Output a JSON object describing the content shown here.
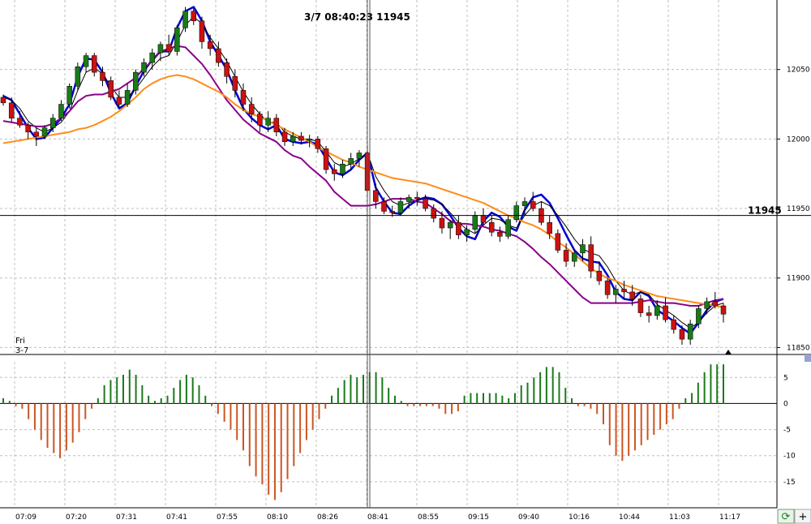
{
  "chart_data": [
    {
      "type": "candlestick",
      "title": "",
      "cursor_label": "3/7 08:40:23  11945",
      "crosshair_price": 11945,
      "crosshair_price_label": "11945",
      "day_label": [
        "Fri",
        "3-7"
      ],
      "ylim": [
        11845,
        12100
      ],
      "y_ticks": [
        11850,
        11900,
        11950,
        12000,
        12050
      ],
      "y_tick_labels": [
        "11850",
        "11900",
        "11950",
        "12000",
        "12050"
      ],
      "x_tick_labels": [
        "07:09",
        "07:20",
        "07:31",
        "07:41",
        "07:55",
        "08:10",
        "08:26",
        "08:41",
        "08:55",
        "09:15",
        "09:40",
        "10:16",
        "10:44",
        "11:03",
        "11:17"
      ],
      "grid": true,
      "series": [
        {
          "name": "",
          "color": "#0000cc",
          "values": [
            12031,
            12028,
            12018,
            12008,
            12000,
            12001,
            12008,
            12015,
            12025,
            12045,
            12058,
            12057,
            12048,
            12033,
            12022,
            12026,
            12038,
            12049,
            12057,
            12063,
            12063,
            12080,
            12092,
            12095,
            12085,
            12070,
            12060,
            12050,
            12035,
            12022,
            12015,
            12010,
            12007,
            12010,
            12000,
            11998,
            11997,
            11998,
            11996,
            11986,
            11976,
            11974,
            11978,
            11985,
            11990,
            11965,
            11955,
            11947,
            11946,
            11952,
            11956,
            11958,
            11957,
            11953,
            11945,
            11936,
            11930,
            11928,
            11941,
            11947,
            11944,
            11937,
            11934,
            11949,
            11958,
            11960,
            11954,
            11943,
            11931,
            11920,
            11914,
            11912,
            11911,
            11902,
            11890,
            11885,
            11884,
            11890,
            11887,
            11877,
            11873,
            11869,
            11864,
            11860,
            11868,
            11877,
            11883,
            11885
          ]
        },
        {
          "name": "",
          "color": "#000000",
          "values": [
            12030,
            12028,
            12022,
            12013,
            12008,
            12005,
            12008,
            12012,
            12020,
            12035,
            12048,
            12051,
            12047,
            12038,
            12030,
            12030,
            12036,
            12044,
            12052,
            12058,
            12060,
            12070,
            12082,
            12088,
            12083,
            12073,
            12065,
            12056,
            12045,
            12034,
            12025,
            12018,
            12012,
            12012,
            12005,
            12002,
            12000,
            12000,
            11998,
            11991,
            11983,
            11980,
            11982,
            11986,
            11990,
            11973,
            11963,
            11955,
            11952,
            11954,
            11956,
            11957,
            11956,
            11953,
            11947,
            11940,
            11935,
            11932,
            11938,
            11943,
            11942,
            11938,
            11936,
            11945,
            11952,
            11955,
            11952,
            11945,
            11937,
            11928,
            11921,
            11918,
            11916,
            11908,
            11898,
            11891,
            11888,
            11890,
            11888,
            11881,
            11877,
            11873,
            11868,
            11864,
            11868,
            11875,
            11880,
            11882
          ]
        },
        {
          "name": "",
          "color": "#880088",
          "values": [
            12013,
            12012,
            12011,
            12010,
            12009,
            12009,
            12011,
            12015,
            12020,
            12027,
            12031,
            12032,
            12032,
            12034,
            12036,
            12040,
            12044,
            12051,
            12056,
            12063,
            12065,
            12067,
            12066,
            12060,
            12054,
            12046,
            12037,
            12028,
            12021,
            12014,
            12009,
            12004,
            12001,
            11998,
            11992,
            11988,
            11986,
            11980,
            11975,
            11970,
            11962,
            11957,
            11952,
            11952,
            11952,
            11953,
            11955,
            11957,
            11957,
            11957,
            11955,
            11954,
            11950,
            11946,
            11941,
            11939,
            11939,
            11938,
            11937,
            11935,
            11934,
            11932,
            11930,
            11926,
            11921,
            11915,
            11910,
            11904,
            11898,
            11892,
            11886,
            11882,
            11882,
            11882,
            11882,
            11882,
            11882,
            11883,
            11884,
            11883,
            11882,
            11882,
            11881,
            11880,
            11880,
            11882,
            11884,
            11885
          ]
        },
        {
          "name": "",
          "color": "#ff8c1a",
          "values": [
            11997,
            11998,
            11999,
            12000,
            12001,
            12002,
            12003,
            12004,
            12005,
            12007,
            12008,
            12010,
            12013,
            12016,
            12020,
            12025,
            12030,
            12036,
            12040,
            12043,
            12045,
            12046,
            12045,
            12043,
            12040,
            12037,
            12034,
            12030,
            12025,
            12021,
            12018,
            12016,
            12013,
            12010,
            12007,
            12004,
            12001,
            11998,
            11994,
            11991,
            11988,
            11985,
            11983,
            11980,
            11978,
            11976,
            11974,
            11972,
            11971,
            11970,
            11969,
            11968,
            11966,
            11964,
            11962,
            11960,
            11958,
            11956,
            11954,
            11951,
            11948,
            11945,
            11943,
            11940,
            11938,
            11935,
            11931,
            11926,
            11922,
            11917,
            11912,
            11907,
            11903,
            11900,
            11898,
            11895,
            11893,
            11891,
            11889,
            11887,
            11886,
            11885,
            11884,
            11883,
            11882,
            11881,
            11880,
            11879
          ]
        }
      ],
      "candles": [
        [
          12030,
          12032,
          12024,
          12026
        ],
        [
          12026,
          12030,
          12012,
          12015
        ],
        [
          12015,
          12020,
          12008,
          12010
        ],
        [
          12010,
          12012,
          12000,
          12005
        ],
        [
          12005,
          12008,
          11995,
          12002
        ],
        [
          12002,
          12010,
          12000,
          12008
        ],
        [
          12008,
          12018,
          12005,
          12015
        ],
        [
          12015,
          12028,
          12013,
          12025
        ],
        [
          12025,
          12040,
          12022,
          12038
        ],
        [
          12038,
          12055,
          12035,
          12052
        ],
        [
          12052,
          12062,
          12048,
          12060
        ],
        [
          12060,
          12062,
          12045,
          12048
        ],
        [
          12048,
          12052,
          12038,
          12042
        ],
        [
          12042,
          12045,
          12028,
          12030
        ],
        [
          12030,
          12035,
          12022,
          12025
        ],
        [
          12025,
          12040,
          12023,
          12035
        ],
        [
          12035,
          12050,
          12032,
          12048
        ],
        [
          12048,
          12058,
          12045,
          12055
        ],
        [
          12055,
          12065,
          12050,
          12062
        ],
        [
          12062,
          12070,
          12056,
          12068
        ],
        [
          12068,
          12075,
          12060,
          12063
        ],
        [
          12063,
          12082,
          12060,
          12080
        ],
        [
          12080,
          12095,
          12077,
          12092
        ],
        [
          12092,
          12095,
          12082,
          12085
        ],
        [
          12085,
          12088,
          12065,
          12070
        ],
        [
          12070,
          12075,
          12060,
          12065
        ],
        [
          12065,
          12070,
          12052,
          12055
        ],
        [
          12055,
          12058,
          12040,
          12045
        ],
        [
          12045,
          12050,
          12030,
          12035
        ],
        [
          12035,
          12040,
          12020,
          12025
        ],
        [
          12025,
          12030,
          12012,
          12018
        ],
        [
          12018,
          12020,
          12005,
          12010
        ],
        [
          12010,
          12020,
          12005,
          12015
        ],
        [
          12015,
          12018,
          12002,
          12005
        ],
        [
          12005,
          12008,
          11995,
          11998
        ],
        [
          11998,
          12005,
          11995,
          12002
        ],
        [
          12002,
          12005,
          11996,
          11999
        ],
        [
          11999,
          12003,
          11994,
          12000
        ],
        [
          12000,
          12002,
          11990,
          11993
        ],
        [
          11993,
          11995,
          11975,
          11978
        ],
        [
          11978,
          11982,
          11970,
          11975
        ],
        [
          11975,
          11985,
          11972,
          11982
        ],
        [
          11982,
          11990,
          11978,
          11986
        ],
        [
          11986,
          11992,
          11980,
          11990
        ],
        [
          11990,
          11995,
          11960,
          11963
        ],
        [
          11963,
          11968,
          11950,
          11955
        ],
        [
          11955,
          11958,
          11946,
          11948
        ],
        [
          11948,
          11952,
          11944,
          11947
        ],
        [
          11947,
          11958,
          11945,
          11955
        ],
        [
          11955,
          11960,
          11950,
          11958
        ],
        [
          11958,
          11962,
          11952,
          11957
        ],
        [
          11957,
          11960,
          11948,
          11950
        ],
        [
          11950,
          11953,
          11940,
          11943
        ],
        [
          11943,
          11948,
          11932,
          11936
        ],
        [
          11936,
          11942,
          11928,
          11940
        ],
        [
          11940,
          11945,
          11928,
          11931
        ],
        [
          11931,
          11938,
          11926,
          11935
        ],
        [
          11935,
          11948,
          11932,
          11945
        ],
        [
          11945,
          11950,
          11938,
          11940
        ],
        [
          11940,
          11945,
          11930,
          11933
        ],
        [
          11933,
          11937,
          11926,
          11930
        ],
        [
          11930,
          11945,
          11928,
          11942
        ],
        [
          11942,
          11955,
          11940,
          11952
        ],
        [
          11952,
          11958,
          11945,
          11955
        ],
        [
          11955,
          11962,
          11948,
          11950
        ],
        [
          11950,
          11955,
          11938,
          11940
        ],
        [
          11940,
          11945,
          11928,
          11932
        ],
        [
          11932,
          11935,
          11918,
          11920
        ],
        [
          11920,
          11925,
          11908,
          11912
        ],
        [
          11912,
          11920,
          11908,
          11918
        ],
        [
          11918,
          11928,
          11912,
          11924
        ],
        [
          11924,
          11930,
          11900,
          11905
        ],
        [
          11905,
          11912,
          11895,
          11898
        ],
        [
          11898,
          11900,
          11885,
          11888
        ],
        [
          11888,
          11895,
          11882,
          11892
        ],
        [
          11892,
          11898,
          11885,
          11890
        ],
        [
          11890,
          11895,
          11880,
          11885
        ],
        [
          11885,
          11888,
          11872,
          11875
        ],
        [
          11875,
          11880,
          11868,
          11873
        ],
        [
          11873,
          11884,
          11870,
          11880
        ],
        [
          11880,
          11886,
          11868,
          11870
        ],
        [
          11870,
          11873,
          11860,
          11863
        ],
        [
          11863,
          11866,
          11852,
          11856
        ],
        [
          11856,
          11870,
          11852,
          11867
        ],
        [
          11867,
          11880,
          11864,
          11878
        ],
        [
          11878,
          11886,
          11874,
          11883
        ],
        [
          11883,
          11890,
          11878,
          11880
        ],
        [
          11880,
          11882,
          11868,
          11874
        ]
      ],
      "candle_colors": {
        "up": "#1a7a1a",
        "down": "#cc1111"
      }
    },
    {
      "type": "bar",
      "title": "",
      "ylim": [
        -20,
        8
      ],
      "y_ticks": [
        5,
        0,
        -5,
        -10,
        -15
      ],
      "y_tick_labels": [
        "5",
        "0",
        "-5",
        "-10",
        "-15"
      ],
      "colors": {
        "positive": "#1a7a1a",
        "negative": "#cc5522"
      },
      "values": [
        1,
        0.5,
        -0.5,
        -1,
        -3,
        -5,
        -7,
        -8.5,
        -9.5,
        -10.5,
        -9,
        -7.5,
        -5.5,
        -3,
        -1,
        1,
        3.5,
        4.5,
        5,
        5.5,
        6.5,
        5.5,
        3.5,
        1.5,
        0.5,
        1,
        1.5,
        3,
        4.5,
        5.5,
        5,
        3.5,
        1.5,
        -0.5,
        -2,
        -3.5,
        -5,
        -7,
        -9,
        -12,
        -14,
        -15.5,
        -17.5,
        -18.5,
        -17,
        -14.5,
        -12,
        -9.5,
        -7,
        -5,
        -3,
        -1,
        1.5,
        3,
        4.5,
        5.5,
        5,
        5.5,
        6,
        6,
        5,
        3,
        1.5,
        0.5,
        -0.5,
        -0.5,
        -0.5,
        -0.5,
        -0.5,
        -1,
        -2,
        -2,
        -1.5,
        1.5,
        2,
        2,
        2,
        2,
        2,
        1.5,
        1,
        2,
        3.5,
        4,
        5,
        6,
        7,
        7,
        6,
        3,
        1,
        -0.5,
        -0.5,
        -1,
        -2,
        -4,
        -8,
        -10,
        -11,
        -10,
        -9,
        -8,
        -7,
        -6,
        -5,
        -4,
        -3,
        -1,
        1,
        2,
        4,
        6,
        7.5,
        7.5,
        7.5
      ]
    }
  ]
}
